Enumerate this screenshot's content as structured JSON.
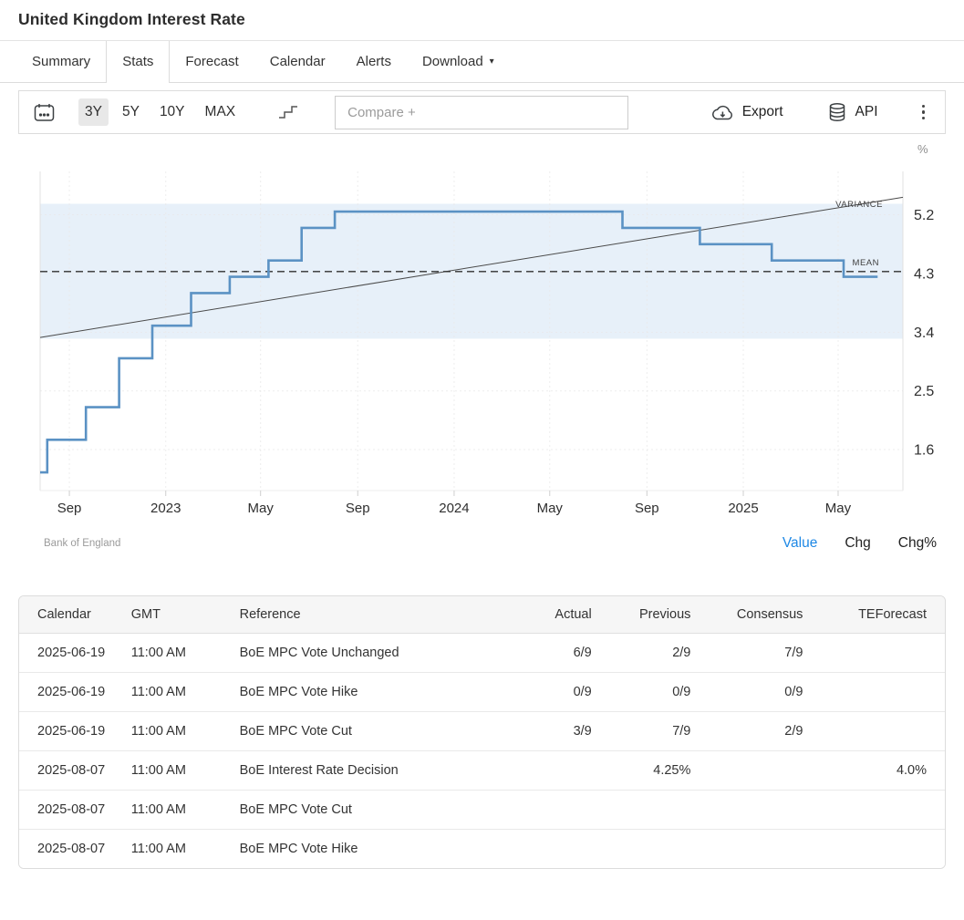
{
  "page": {
    "title": "United Kingdom Interest Rate"
  },
  "tabs": [
    {
      "label": "Summary",
      "active": false
    },
    {
      "label": "Stats",
      "active": true
    },
    {
      "label": "Forecast",
      "active": false
    },
    {
      "label": "Calendar",
      "active": false
    },
    {
      "label": "Alerts",
      "active": false
    },
    {
      "label": "Download",
      "active": false,
      "has_caret": true
    }
  ],
  "toolbar": {
    "ranges": [
      {
        "label": "3Y",
        "active": true
      },
      {
        "label": "5Y",
        "active": false
      },
      {
        "label": "10Y",
        "active": false
      },
      {
        "label": "MAX",
        "active": false
      }
    ],
    "compare_placeholder": "Compare +",
    "export_label": "Export",
    "api_label": "API"
  },
  "chart_data": {
    "type": "line",
    "line_style": "step",
    "unit": "%",
    "source": "Bank of England",
    "line_color": "#5b92c4",
    "x_range": [
      "2022-07-26",
      "2025-07-22"
    ],
    "y_ticks": [
      5.2,
      4.3,
      3.4,
      2.5,
      1.6
    ],
    "x_ticks": [
      {
        "date": "2022-09-01",
        "label": "Sep"
      },
      {
        "date": "2023-01-01",
        "label": "2023"
      },
      {
        "date": "2023-05-01",
        "label": "May"
      },
      {
        "date": "2023-09-01",
        "label": "Sep"
      },
      {
        "date": "2024-01-01",
        "label": "2024"
      },
      {
        "date": "2024-05-01",
        "label": "May"
      },
      {
        "date": "2024-09-01",
        "label": "Sep"
      },
      {
        "date": "2025-01-01",
        "label": "2025"
      },
      {
        "date": "2025-05-01",
        "label": "May"
      }
    ],
    "series": [
      {
        "name": "United Kingdom Interest Rate",
        "points": [
          [
            "2022-07-26",
            1.25
          ],
          [
            "2022-08-04",
            1.75
          ],
          [
            "2022-09-22",
            2.25
          ],
          [
            "2022-11-03",
            3.0
          ],
          [
            "2022-12-15",
            3.5
          ],
          [
            "2023-02-02",
            4.0
          ],
          [
            "2023-03-23",
            4.25
          ],
          [
            "2023-05-11",
            4.5
          ],
          [
            "2023-06-22",
            5.0
          ],
          [
            "2023-08-03",
            5.25
          ],
          [
            "2024-08-01",
            5.0
          ],
          [
            "2024-11-07",
            4.75
          ],
          [
            "2025-02-06",
            4.5
          ],
          [
            "2025-05-08",
            4.25
          ],
          [
            "2025-06-20",
            4.25
          ]
        ]
      }
    ],
    "mean": {
      "label": "MEAN",
      "value": 4.33
    },
    "variance": {
      "label": "VARIANCE",
      "band": [
        3.3,
        5.37
      ],
      "band_color": "#e7f0f9"
    },
    "trend_line": {
      "start_value": 3.32,
      "end_value": 5.47
    }
  },
  "chart_footer": {
    "modes": [
      {
        "label": "Value",
        "active": true
      },
      {
        "label": "Chg",
        "active": false
      },
      {
        "label": "Chg%",
        "active": false
      }
    ]
  },
  "table": {
    "columns": [
      "Calendar",
      "GMT",
      "Reference",
      "Actual",
      "Previous",
      "Consensus",
      "TEForecast"
    ],
    "rows": [
      [
        "2025-06-19",
        "11:00 AM",
        "BoE MPC Vote Unchanged",
        "6/9",
        "2/9",
        "7/9",
        ""
      ],
      [
        "2025-06-19",
        "11:00 AM",
        "BoE MPC Vote Hike",
        "0/9",
        "0/9",
        "0/9",
        ""
      ],
      [
        "2025-06-19",
        "11:00 AM",
        "BoE MPC Vote Cut",
        "3/9",
        "7/9",
        "2/9",
        ""
      ],
      [
        "2025-08-07",
        "11:00 AM",
        "BoE Interest Rate Decision",
        "",
        "4.25%",
        "",
        "4.0%"
      ],
      [
        "2025-08-07",
        "11:00 AM",
        "BoE MPC Vote Cut",
        "",
        "",
        "",
        ""
      ],
      [
        "2025-08-07",
        "11:00 AM",
        "BoE MPC Vote Hike",
        "",
        "",
        "",
        ""
      ]
    ]
  },
  "colors": {
    "accent_blue": "#1e88e5",
    "line_blue": "#5b92c4",
    "band_blue": "#e7f0f9"
  }
}
